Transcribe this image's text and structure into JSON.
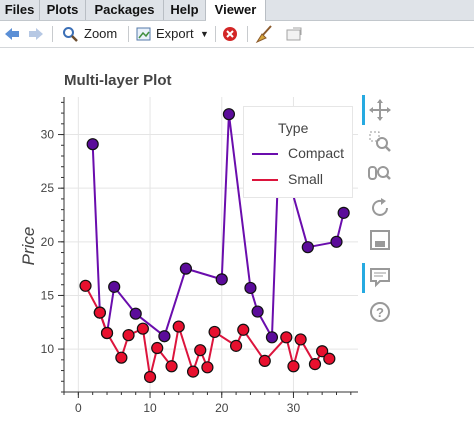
{
  "tabs": [
    {
      "label": "Files"
    },
    {
      "label": "Plots"
    },
    {
      "label": "Packages"
    },
    {
      "label": "Help"
    },
    {
      "label": "Viewer"
    }
  ],
  "active_tab": "Viewer",
  "toolbar": {
    "zoom_label": "Zoom",
    "export_label": "Export"
  },
  "chart_data": {
    "type": "line",
    "title": "Multi-layer Plot",
    "xlabel": "",
    "ylabel": "Price",
    "xlim": [
      -2,
      39
    ],
    "ylim": [
      6,
      33.5
    ],
    "xticks": [
      0,
      10,
      20,
      30
    ],
    "yticks": [
      10,
      15,
      20,
      25,
      30
    ],
    "grid": true,
    "legend": {
      "title": "Type",
      "placement": "top-right"
    },
    "series": [
      {
        "name": "Compact",
        "color": "#6a0dad",
        "marker_fill": "#5b0c9a",
        "points": [
          [
            2,
            29.1
          ],
          [
            3,
            13.4
          ],
          [
            4,
            11.5
          ],
          [
            5,
            15.8
          ],
          [
            8,
            13.3
          ],
          [
            12,
            11.2
          ],
          [
            15,
            17.5
          ],
          [
            20,
            16.5
          ],
          [
            21,
            31.9
          ],
          [
            24,
            15.7
          ],
          [
            25,
            13.5
          ],
          [
            27,
            11.1
          ],
          [
            28,
            29.0
          ],
          [
            32,
            19.5
          ],
          [
            36,
            20.0
          ],
          [
            37,
            22.7
          ]
        ]
      },
      {
        "name": "Small",
        "color": "#dc143c",
        "marker_fill": "#e8102e",
        "points": [
          [
            1,
            15.9
          ],
          [
            3,
            13.4
          ],
          [
            4,
            11.5
          ],
          [
            6,
            9.2
          ],
          [
            7,
            11.3
          ],
          [
            9,
            11.9
          ],
          [
            10,
            7.4
          ],
          [
            11,
            10.1
          ],
          [
            13,
            8.4
          ],
          [
            14,
            12.1
          ],
          [
            16,
            7.9
          ],
          [
            17,
            9.9
          ],
          [
            18,
            8.3
          ],
          [
            19,
            11.6
          ],
          [
            22,
            10.3
          ],
          [
            23,
            11.8
          ],
          [
            26,
            8.9
          ],
          [
            29,
            11.1
          ],
          [
            30,
            8.4
          ],
          [
            31,
            10.9
          ],
          [
            33,
            8.6
          ],
          [
            34,
            9.8
          ],
          [
            35,
            9.1
          ]
        ]
      }
    ]
  }
}
